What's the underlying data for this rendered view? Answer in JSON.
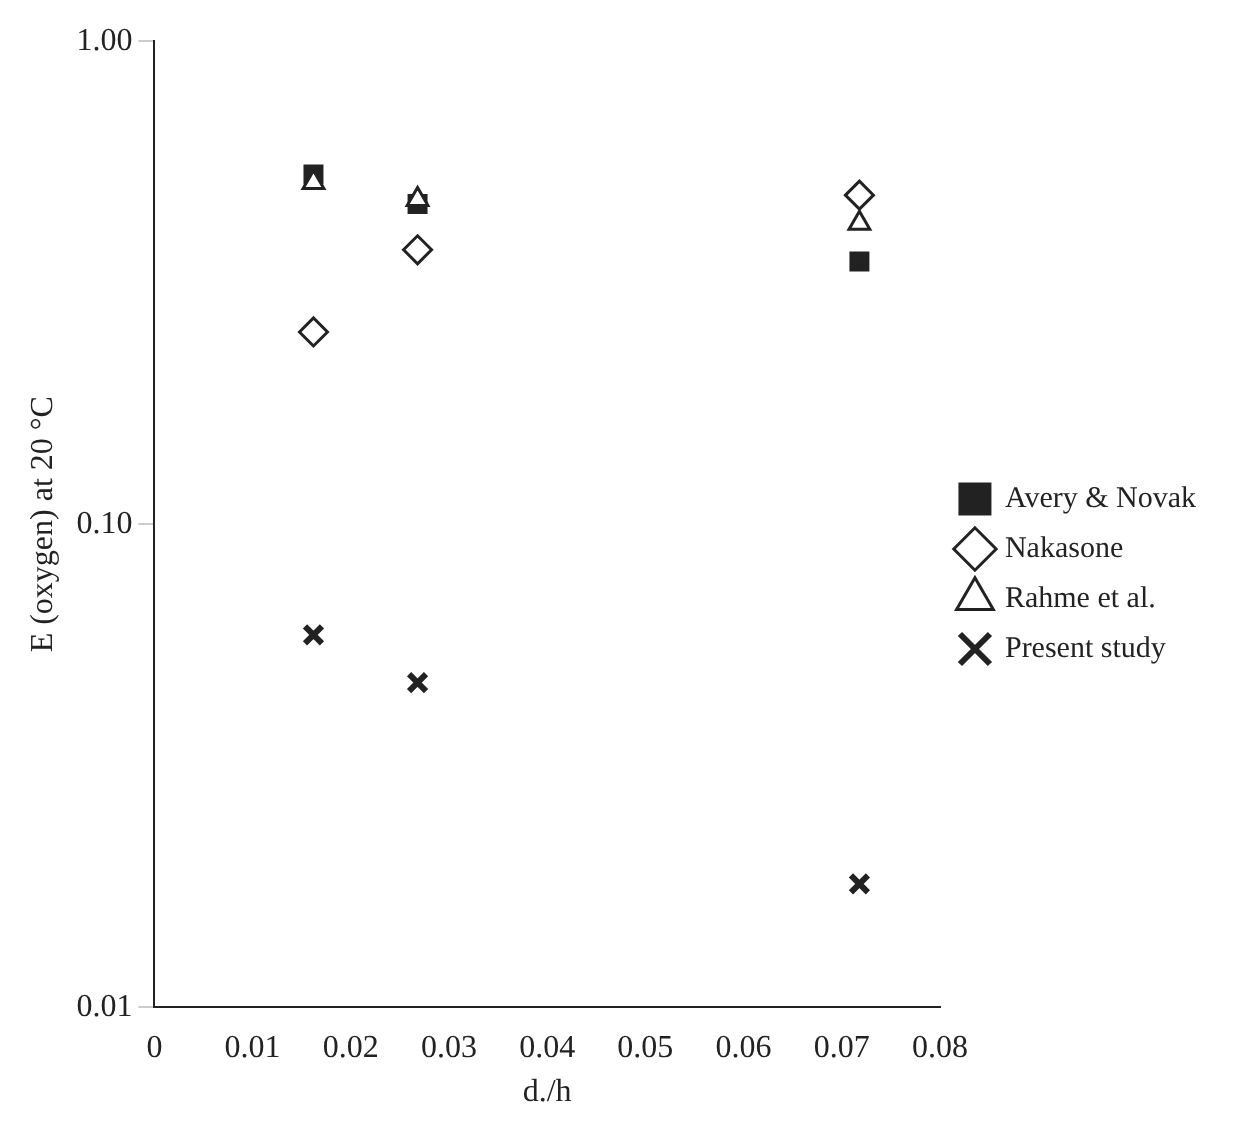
{
  "chart_data": {
    "type": "scatter",
    "xlabel": "d./h",
    "ylabel": "E (oxygen) at 20 °C",
    "x": [
      0.0162,
      0.0268,
      0.0718
    ],
    "series": [
      {
        "name": "Avery & Novak",
        "color": "#222222",
        "marker": "square",
        "values": [
          0.53,
          0.46,
          0.35
        ]
      },
      {
        "name": "Nakasone",
        "color": "#222222",
        "marker": "diamond",
        "values": [
          0.25,
          0.37,
          0.48
        ]
      },
      {
        "name": "Rahme et al.",
        "color": "#222222",
        "marker": "triangle",
        "values": [
          0.51,
          0.47,
          0.42
        ]
      },
      {
        "name": "Present study",
        "color": "#222222",
        "marker": "cross",
        "values": [
          0.059,
          0.047,
          0.018
        ]
      }
    ],
    "xlim": [
      0,
      0.08
    ],
    "xticks": [
      0,
      0.01,
      0.02,
      0.03,
      0.04,
      0.05,
      0.06,
      0.07,
      0.08
    ],
    "ylim": [
      0.01,
      1
    ],
    "yticks": [
      {
        "value": 0.01,
        "label": "0.01"
      },
      {
        "value": 0.1,
        "label": "0.10"
      },
      {
        "value": 1,
        "label": "1.00"
      }
    ],
    "log": "y",
    "grid": false,
    "legend": "right"
  }
}
